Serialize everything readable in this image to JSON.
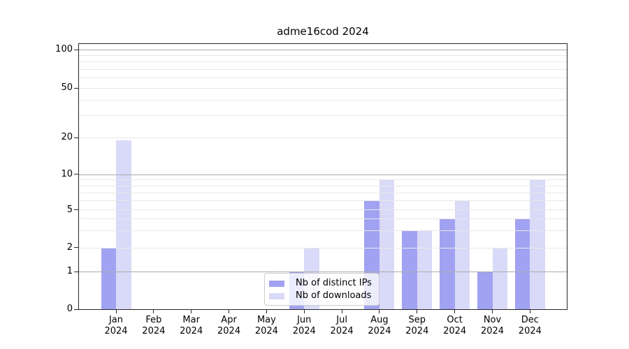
{
  "title": "adme16cod 2024",
  "chart_data": {
    "type": "bar",
    "title": "adme16cod 2024",
    "x_months": [
      "Jan",
      "Feb",
      "Mar",
      "Apr",
      "May",
      "Jun",
      "Jul",
      "Aug",
      "Sep",
      "Oct",
      "Nov",
      "Dec"
    ],
    "x_year": "2024",
    "y_ticks": [
      0,
      1,
      2,
      5,
      10,
      20,
      50,
      100
    ],
    "ylim": [
      0,
      110
    ],
    "yscale": "log-like with ticks 0,1,2,5,10,20,50,100",
    "grid": "horizontal: major lines at 1,10,100; faint minor lines at 2-9 and 20-90",
    "legend_position": "lower center",
    "series": [
      {
        "name": "Nb of distinct IPs",
        "color": "#a2a2f2",
        "values": [
          2,
          0,
          0,
          0,
          0,
          1,
          0,
          6,
          3,
          4,
          1,
          4
        ]
      },
      {
        "name": "Nb of downloads",
        "color": "#d9d9f8",
        "values": [
          19,
          0,
          0,
          0,
          0,
          2,
          0,
          9,
          3,
          6,
          2,
          9
        ]
      }
    ]
  }
}
